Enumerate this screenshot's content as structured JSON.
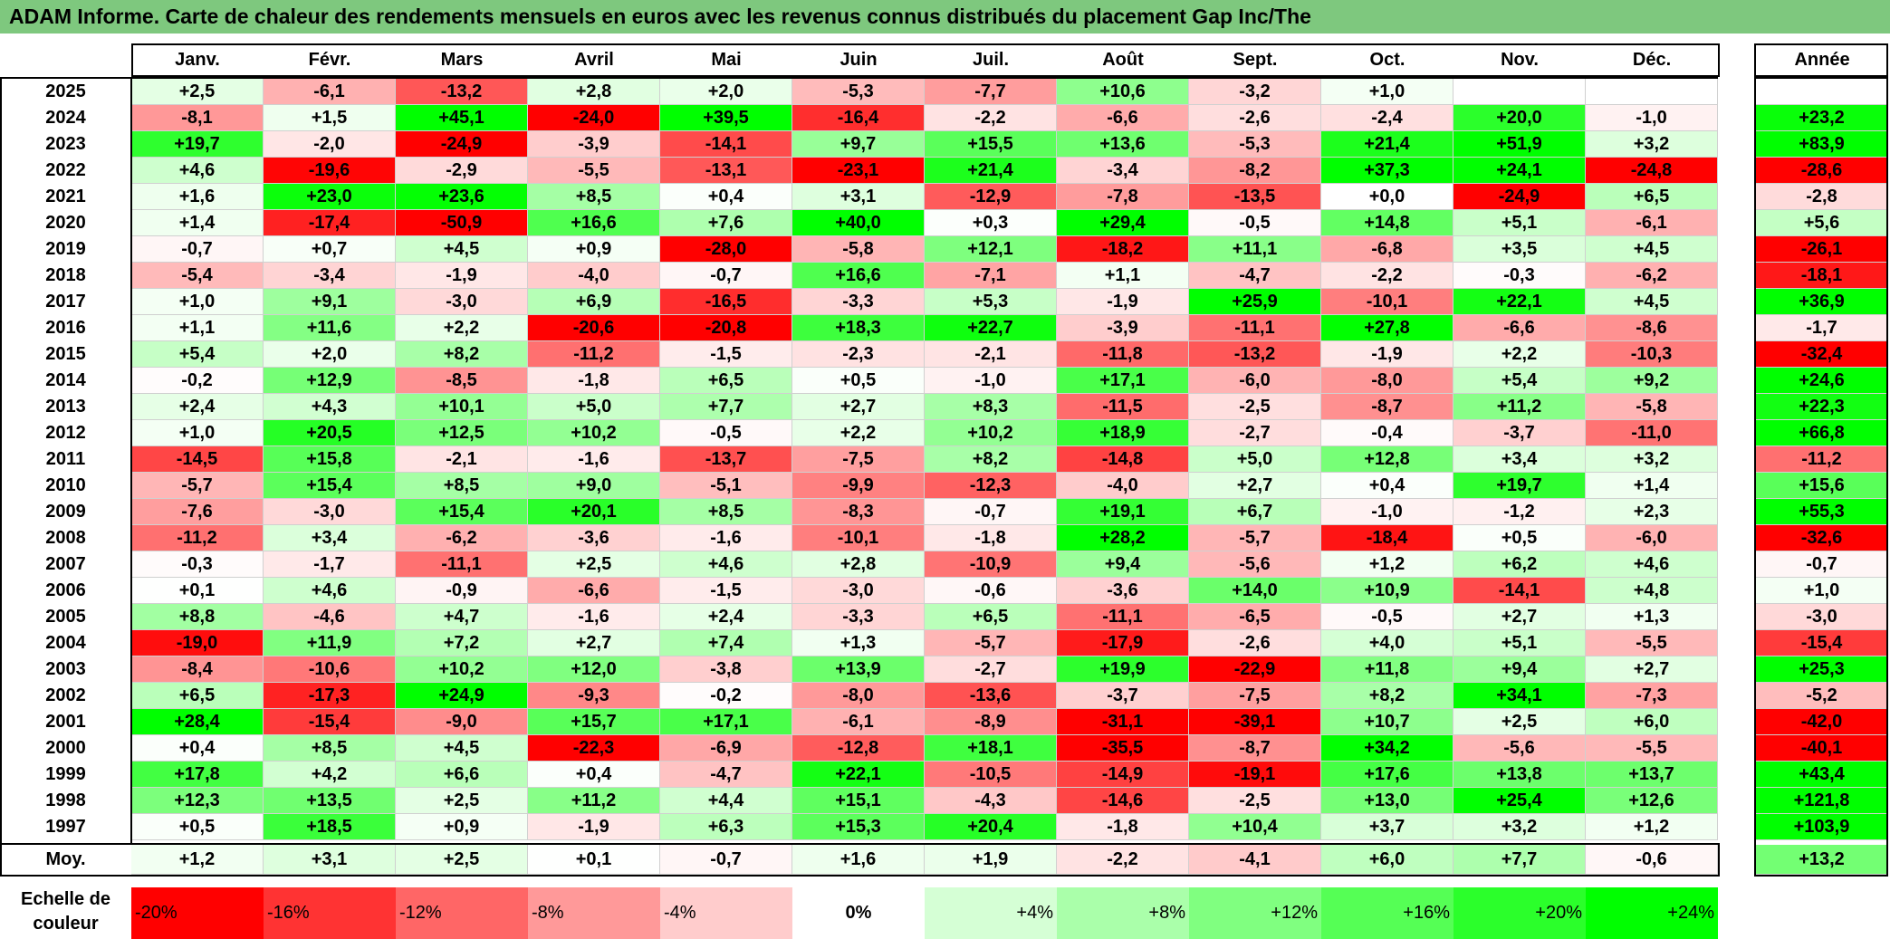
{
  "title": "ADAM Informe. Carte de chaleur des rendements mensuels en euros avec les revenus connus distribués du placement Gap Inc/The",
  "months": [
    "Janv.",
    "Févr.",
    "Mars",
    "Avril",
    "Mai",
    "Juin",
    "Juil.",
    "Août",
    "Sept.",
    "Oct.",
    "Nov.",
    "Déc."
  ],
  "year_header": "Année",
  "avg_label": "Moy.",
  "scale_label_line1": "Echelle de",
  "scale_label_line2": "couleur",
  "colors": {
    "title_bg": "#7ec87e",
    "negative": "#ff0000",
    "neutral": "#ffffff",
    "positive": "#00ff00"
  },
  "chart_data": {
    "type": "heatmap",
    "title": "ADAM Informe. Carte de chaleur des rendements mensuels en euros avec les revenus connus distribués du placement Gap Inc/The",
    "columns": [
      "Janv.",
      "Févr.",
      "Mars",
      "Avril",
      "Mai",
      "Juin",
      "Juil.",
      "Août",
      "Sept.",
      "Oct.",
      "Nov.",
      "Déc."
    ],
    "rows": [
      {
        "year": "2025",
        "values": [
          "+2,5",
          "-6,1",
          "-13,2",
          "+2,8",
          "+2,0",
          "-5,3",
          "-7,7",
          "+10,6",
          "-3,2",
          "+1,0",
          "",
          ""
        ],
        "annual": ""
      },
      {
        "year": "2024",
        "values": [
          "-8,1",
          "+1,5",
          "+45,1",
          "-24,0",
          "+39,5",
          "-16,4",
          "-2,2",
          "-6,6",
          "-2,6",
          "-2,4",
          "+20,0",
          "-1,0"
        ],
        "annual": "+23,2"
      },
      {
        "year": "2023",
        "values": [
          "+19,7",
          "-2,0",
          "-24,9",
          "-3,9",
          "-14,1",
          "+9,7",
          "+15,5",
          "+13,6",
          "-5,3",
          "+21,4",
          "+51,9",
          "+3,2"
        ],
        "annual": "+83,9"
      },
      {
        "year": "2022",
        "values": [
          "+4,6",
          "-19,6",
          "-2,9",
          "-5,5",
          "-13,1",
          "-23,1",
          "+21,4",
          "-3,4",
          "-8,2",
          "+37,3",
          "+24,1",
          "-24,8"
        ],
        "annual": "-28,6"
      },
      {
        "year": "2021",
        "values": [
          "+1,6",
          "+23,0",
          "+23,6",
          "+8,5",
          "+0,4",
          "+3,1",
          "-12,9",
          "-7,8",
          "-13,5",
          "+0,0",
          "-24,9",
          "+6,5"
        ],
        "annual": "-2,8"
      },
      {
        "year": "2020",
        "values": [
          "+1,4",
          "-17,4",
          "-50,9",
          "+16,6",
          "+7,6",
          "+40,0",
          "+0,3",
          "+29,4",
          "-0,5",
          "+14,8",
          "+5,1",
          "-6,1"
        ],
        "annual": "+5,6"
      },
      {
        "year": "2019",
        "values": [
          "-0,7",
          "+0,7",
          "+4,5",
          "+0,9",
          "-28,0",
          "-5,8",
          "+12,1",
          "-18,2",
          "+11,1",
          "-6,8",
          "+3,5",
          "+4,5"
        ],
        "annual": "-26,1"
      },
      {
        "year": "2018",
        "values": [
          "-5,4",
          "-3,4",
          "-1,9",
          "-4,0",
          "-0,7",
          "+16,6",
          "-7,1",
          "+1,1",
          "-4,7",
          "-2,2",
          "-0,3",
          "-6,2"
        ],
        "annual": "-18,1"
      },
      {
        "year": "2017",
        "values": [
          "+1,0",
          "+9,1",
          "-3,0",
          "+6,9",
          "-16,5",
          "-3,3",
          "+5,3",
          "-1,9",
          "+25,9",
          "-10,1",
          "+22,1",
          "+4,5"
        ],
        "annual": "+36,9"
      },
      {
        "year": "2016",
        "values": [
          "+1,1",
          "+11,6",
          "+2,2",
          "-20,6",
          "-20,8",
          "+18,3",
          "+22,7",
          "-3,9",
          "-11,1",
          "+27,8",
          "-6,6",
          "-8,6"
        ],
        "annual": "-1,7"
      },
      {
        "year": "2015",
        "values": [
          "+5,4",
          "+2,0",
          "+8,2",
          "-11,2",
          "-1,5",
          "-2,3",
          "-2,1",
          "-11,8",
          "-13,2",
          "-1,9",
          "+2,2",
          "-10,3"
        ],
        "annual": "-32,4"
      },
      {
        "year": "2014",
        "values": [
          "-0,2",
          "+12,9",
          "-8,5",
          "-1,8",
          "+6,5",
          "+0,5",
          "-1,0",
          "+17,1",
          "-6,0",
          "-8,0",
          "+5,4",
          "+9,2"
        ],
        "annual": "+24,6"
      },
      {
        "year": "2013",
        "values": [
          "+2,4",
          "+4,3",
          "+10,1",
          "+5,0",
          "+7,7",
          "+2,7",
          "+8,3",
          "-11,5",
          "-2,5",
          "-8,7",
          "+11,2",
          "-5,8"
        ],
        "annual": "+22,3"
      },
      {
        "year": "2012",
        "values": [
          "+1,0",
          "+20,5",
          "+12,5",
          "+10,2",
          "-0,5",
          "+2,2",
          "+10,2",
          "+18,9",
          "-2,7",
          "-0,4",
          "-3,7",
          "-11,0"
        ],
        "annual": "+66,8"
      },
      {
        "year": "2011",
        "values": [
          "-14,5",
          "+15,8",
          "-2,1",
          "-1,6",
          "-13,7",
          "-7,5",
          "+8,2",
          "-14,8",
          "+5,0",
          "+12,8",
          "+3,4",
          "+3,2"
        ],
        "annual": "-11,2"
      },
      {
        "year": "2010",
        "values": [
          "-5,7",
          "+15,4",
          "+8,5",
          "+9,0",
          "-5,1",
          "-9,9",
          "-12,3",
          "-4,0",
          "+2,7",
          "+0,4",
          "+19,7",
          "+1,4"
        ],
        "annual": "+15,6"
      },
      {
        "year": "2009",
        "values": [
          "-7,6",
          "-3,0",
          "+15,4",
          "+20,1",
          "+8,5",
          "-8,3",
          "-0,7",
          "+19,1",
          "+6,7",
          "-1,0",
          "-1,2",
          "+2,3"
        ],
        "annual": "+55,3"
      },
      {
        "year": "2008",
        "values": [
          "-11,2",
          "+3,4",
          "-6,2",
          "-3,6",
          "-1,6",
          "-10,1",
          "-1,8",
          "+28,2",
          "-5,7",
          "-18,4",
          "+0,5",
          "-6,0"
        ],
        "annual": "-32,6"
      },
      {
        "year": "2007",
        "values": [
          "-0,3",
          "-1,7",
          "-11,1",
          "+2,5",
          "+4,6",
          "+2,8",
          "-10,9",
          "+9,4",
          "-5,6",
          "+1,2",
          "+6,2",
          "+4,6"
        ],
        "annual": "-0,7"
      },
      {
        "year": "2006",
        "values": [
          "+0,1",
          "+4,6",
          "-0,9",
          "-6,6",
          "-1,5",
          "-3,0",
          "-0,6",
          "-3,6",
          "+14,0",
          "+10,9",
          "-14,1",
          "+4,8"
        ],
        "annual": "+1,0"
      },
      {
        "year": "2005",
        "values": [
          "+8,8",
          "-4,6",
          "+4,7",
          "-1,6",
          "+2,4",
          "-3,3",
          "+6,5",
          "-11,1",
          "-6,5",
          "-0,5",
          "+2,7",
          "+1,3"
        ],
        "annual": "-3,0"
      },
      {
        "year": "2004",
        "values": [
          "-19,0",
          "+11,9",
          "+7,2",
          "+2,7",
          "+7,4",
          "+1,3",
          "-5,7",
          "-17,9",
          "-2,6",
          "+4,0",
          "+5,1",
          "-5,5"
        ],
        "annual": "-15,4"
      },
      {
        "year": "2003",
        "values": [
          "-8,4",
          "-10,6",
          "+10,2",
          "+12,0",
          "-3,8",
          "+13,9",
          "-2,7",
          "+19,9",
          "-22,9",
          "+11,8",
          "+9,4",
          "+2,7"
        ],
        "annual": "+25,3"
      },
      {
        "year": "2002",
        "values": [
          "+6,5",
          "-17,3",
          "+24,9",
          "-9,3",
          "-0,2",
          "-8,0",
          "-13,6",
          "-3,7",
          "-7,5",
          "+8,2",
          "+34,1",
          "-7,3"
        ],
        "annual": "-5,2"
      },
      {
        "year": "2001",
        "values": [
          "+28,4",
          "-15,4",
          "-9,0",
          "+15,7",
          "+17,1",
          "-6,1",
          "-8,9",
          "-31,1",
          "-39,1",
          "+10,7",
          "+2,5",
          "+6,0"
        ],
        "annual": "-42,0"
      },
      {
        "year": "2000",
        "values": [
          "+0,4",
          "+8,5",
          "+4,5",
          "-22,3",
          "-6,9",
          "-12,8",
          "+18,1",
          "-35,5",
          "-8,7",
          "+34,2",
          "-5,6",
          "-5,5"
        ],
        "annual": "-40,1"
      },
      {
        "year": "1999",
        "values": [
          "+17,8",
          "+4,2",
          "+6,6",
          "+0,4",
          "-4,7",
          "+22,1",
          "-10,5",
          "-14,9",
          "-19,1",
          "+17,6",
          "+13,8",
          "+13,7"
        ],
        "annual": "+43,4"
      },
      {
        "year": "1998",
        "values": [
          "+12,3",
          "+13,5",
          "+2,5",
          "+11,2",
          "+4,4",
          "+15,1",
          "-4,3",
          "-14,6",
          "-2,5",
          "+13,0",
          "+25,4",
          "+12,6"
        ],
        "annual": "+121,8"
      },
      {
        "year": "1997",
        "values": [
          "+0,5",
          "+18,5",
          "+0,9",
          "-1,9",
          "+6,3",
          "+15,3",
          "+20,4",
          "-1,8",
          "+10,4",
          "+3,7",
          "+3,2",
          "+1,2"
        ],
        "annual": "+103,9"
      }
    ],
    "averages": [
      "+1,2",
      "+3,1",
      "+2,5",
      "+0,1",
      "-0,7",
      "+1,6",
      "+1,9",
      "-2,2",
      "-4,1",
      "+6,0",
      "+7,7",
      "-0,6"
    ],
    "annual_average": "+13,2",
    "color_scale": [
      "-20%",
      "-16%",
      "-12%",
      "-8%",
      "-4%",
      "0%",
      "+4%",
      "+8%",
      "+12%",
      "+16%",
      "+20%",
      "+24%"
    ]
  }
}
